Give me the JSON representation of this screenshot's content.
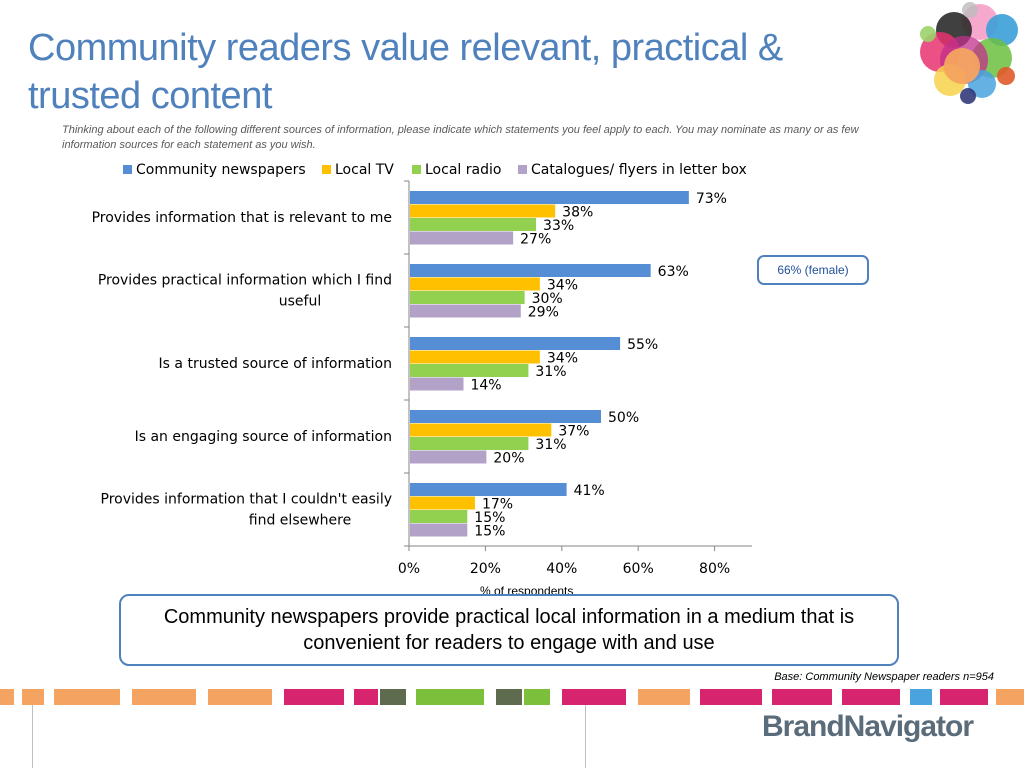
{
  "title": "Community readers value relevant, practical & trusted content",
  "subtitle": "Thinking about each of the following different sources of information, please indicate which statements you feel apply to each.  You may nominate as many or as few information sources for each statement as you wish.",
  "callout_female": "66% (female)",
  "x_axis_label": "% of respondents",
  "summary": "Community newspapers provide practical local information in a medium that is convenient for readers to engage with and use",
  "base_note": "Base: Community Newspaper readers n=954",
  "brand": {
    "name": "BrandNavigator",
    "logo_icon": "bubbles-logo-icon"
  },
  "colors": {
    "title": "#4f81bd",
    "community_newspapers": "#558ed5",
    "local_tv": "#ffc000",
    "local_radio": "#92d050",
    "catalogues": "#b3a2c7"
  },
  "chart_data": {
    "type": "bar",
    "orientation": "horizontal",
    "categories": [
      "Provides information that is relevant to me",
      "Provides practical information which I find useful",
      "Is a trusted source of information",
      "Is an engaging source of information",
      "Provides information that I couldn't easily find elsewhere"
    ],
    "series": [
      {
        "name": "Community newspapers",
        "values": [
          73,
          63,
          55,
          50,
          41
        ]
      },
      {
        "name": "Local TV",
        "values": [
          38,
          34,
          34,
          37,
          17
        ]
      },
      {
        "name": "Local radio",
        "values": [
          33,
          30,
          31,
          31,
          15
        ]
      },
      {
        "name": "Catalogues/ flyers in letter box",
        "values": [
          27,
          29,
          14,
          20,
          15
        ]
      }
    ],
    "xlabel": "% of respondents",
    "ylabel": "",
    "xlim": [
      0,
      90
    ],
    "xticks": [
      "0%",
      "20%",
      "40%",
      "60%",
      "80%"
    ],
    "value_suffix": "%",
    "legend": "top",
    "grid": false
  }
}
